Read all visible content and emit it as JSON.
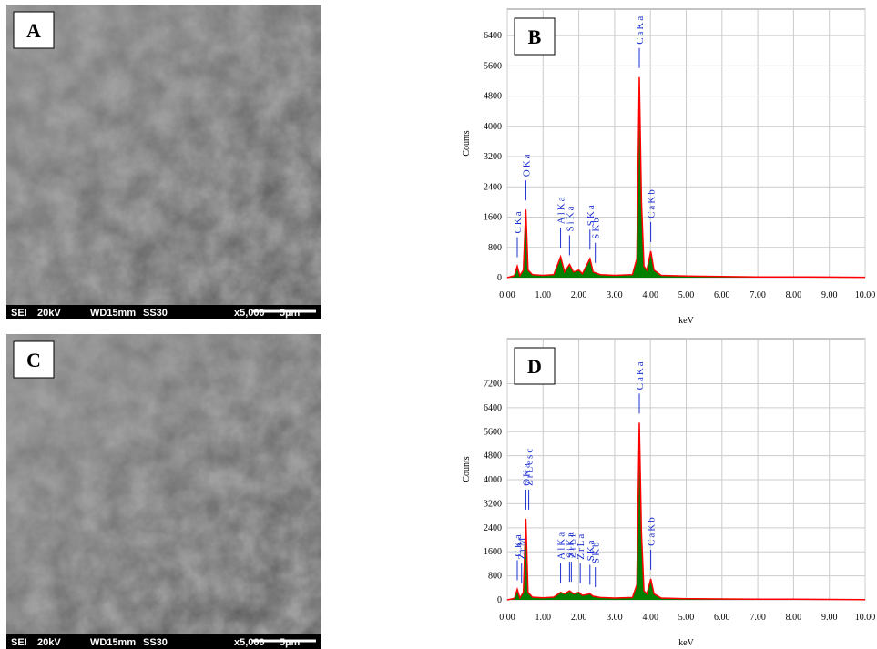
{
  "images": [
    {
      "label": "A",
      "info": [
        "SEI",
        "20kV",
        "WD15mm",
        "SS30",
        "x5,000",
        "5µm"
      ]
    },
    {
      "label": "C",
      "info": [
        "SEI",
        "20kV",
        "WD15mm",
        "SS30",
        "x5,000",
        "5µm"
      ]
    }
  ],
  "chart_data": [
    {
      "type": "area",
      "title": "B",
      "xlabel": "keV",
      "ylabel": "Counts",
      "color": "#ff0000",
      "area_color": "#008000",
      "grid": true,
      "x": [
        0,
        0.2,
        0.28,
        0.35,
        0.45,
        0.52,
        0.58,
        0.7,
        1.0,
        1.3,
        1.49,
        1.6,
        1.74,
        1.85,
        2.0,
        2.1,
        2.31,
        2.4,
        2.6,
        3.0,
        3.5,
        3.62,
        3.69,
        3.75,
        3.82,
        3.9,
        4.01,
        4.1,
        4.3,
        5,
        6,
        7,
        8,
        9,
        10
      ],
      "values": [
        0,
        50,
        300,
        50,
        200,
        1800,
        200,
        80,
        60,
        80,
        550,
        150,
        350,
        150,
        200,
        100,
        500,
        150,
        80,
        60,
        80,
        500,
        5300,
        2000,
        300,
        200,
        700,
        200,
        60,
        40,
        30,
        20,
        20,
        15,
        10
      ],
      "xlim": [
        0,
        10
      ],
      "ylim": [
        0,
        7100
      ],
      "xticks": [
        {
          "value": 0,
          "label": "0.00"
        },
        {
          "value": 1,
          "label": "1.00"
        },
        {
          "value": 2,
          "label": "2.00"
        },
        {
          "value": 3,
          "label": "3.00"
        },
        {
          "value": 4,
          "label": "4.00"
        },
        {
          "value": 5,
          "label": "5.00"
        },
        {
          "value": 6,
          "label": "6.00"
        },
        {
          "value": 7,
          "label": "7.00"
        },
        {
          "value": 8,
          "label": "8.00"
        },
        {
          "value": 9,
          "label": "9.00"
        },
        {
          "value": 10,
          "label": "10.00"
        }
      ],
      "yticks": [
        0,
        800,
        1600,
        2400,
        3200,
        4000,
        4800,
        5600,
        6400
      ],
      "annotations": [
        {
          "text": "CKa",
          "x": 0.28
        },
        {
          "text": "OKa",
          "x": 0.52
        },
        {
          "text": "AlKa",
          "x": 1.49
        },
        {
          "text": "SiKa",
          "x": 1.74
        },
        {
          "text": "SKa",
          "x": 2.31
        },
        {
          "text": "SKb",
          "x": 2.46
        },
        {
          "text": "CaKa",
          "x": 3.69
        },
        {
          "text": "CaKb",
          "x": 4.01
        }
      ]
    },
    {
      "type": "area",
      "title": "D",
      "xlabel": "keV",
      "ylabel": "Counts",
      "color": "#ff0000",
      "area_color": "#008000",
      "grid": true,
      "x": [
        0,
        0.2,
        0.28,
        0.35,
        0.45,
        0.52,
        0.58,
        0.7,
        1.0,
        1.3,
        1.49,
        1.6,
        1.74,
        1.85,
        2.0,
        2.1,
        2.31,
        2.4,
        2.6,
        3.0,
        3.5,
        3.62,
        3.69,
        3.75,
        3.82,
        3.9,
        4.01,
        4.1,
        4.3,
        5,
        6,
        7,
        8,
        9,
        10
      ],
      "values": [
        0,
        50,
        350,
        60,
        250,
        2700,
        250,
        90,
        70,
        90,
        250,
        200,
        300,
        200,
        250,
        150,
        200,
        120,
        80,
        60,
        80,
        500,
        5900,
        2200,
        300,
        200,
        700,
        200,
        60,
        40,
        30,
        20,
        20,
        15,
        10
      ],
      "xlim": [
        0,
        10
      ],
      "ylim": [
        0,
        8700
      ],
      "xticks": [
        {
          "value": 0,
          "label": "0.00"
        },
        {
          "value": 1,
          "label": "1.00"
        },
        {
          "value": 2,
          "label": "2.00"
        },
        {
          "value": 3,
          "label": "3.00"
        },
        {
          "value": 4,
          "label": "4.00"
        },
        {
          "value": 5,
          "label": "5.00"
        },
        {
          "value": 6,
          "label": "6.00"
        },
        {
          "value": 7,
          "label": "7.00"
        },
        {
          "value": 8,
          "label": "8.00"
        },
        {
          "value": 9,
          "label": "9.00"
        },
        {
          "value": 10,
          "label": "10.00"
        }
      ],
      "yticks": [
        0,
        800,
        1600,
        2400,
        3200,
        4000,
        4800,
        5600,
        6400,
        7200
      ],
      "annotations": [
        {
          "text": "CKa",
          "x": 0.28
        },
        {
          "text": "ZrM",
          "x": 0.4
        },
        {
          "text": "OKa",
          "x": 0.52
        },
        {
          "text": "ZrLesc",
          "x": 0.6
        },
        {
          "text": "AlKa",
          "x": 1.49
        },
        {
          "text": "SiKa",
          "x": 1.74
        },
        {
          "text": "ZrLa",
          "x": 2.04
        },
        {
          "text": "ZrLl",
          "x": 1.79
        },
        {
          "text": "SKa",
          "x": 2.31
        },
        {
          "text": "SKb",
          "x": 2.46
        },
        {
          "text": "CaKa",
          "x": 3.69
        },
        {
          "text": "CaKb",
          "x": 4.01
        }
      ]
    }
  ]
}
